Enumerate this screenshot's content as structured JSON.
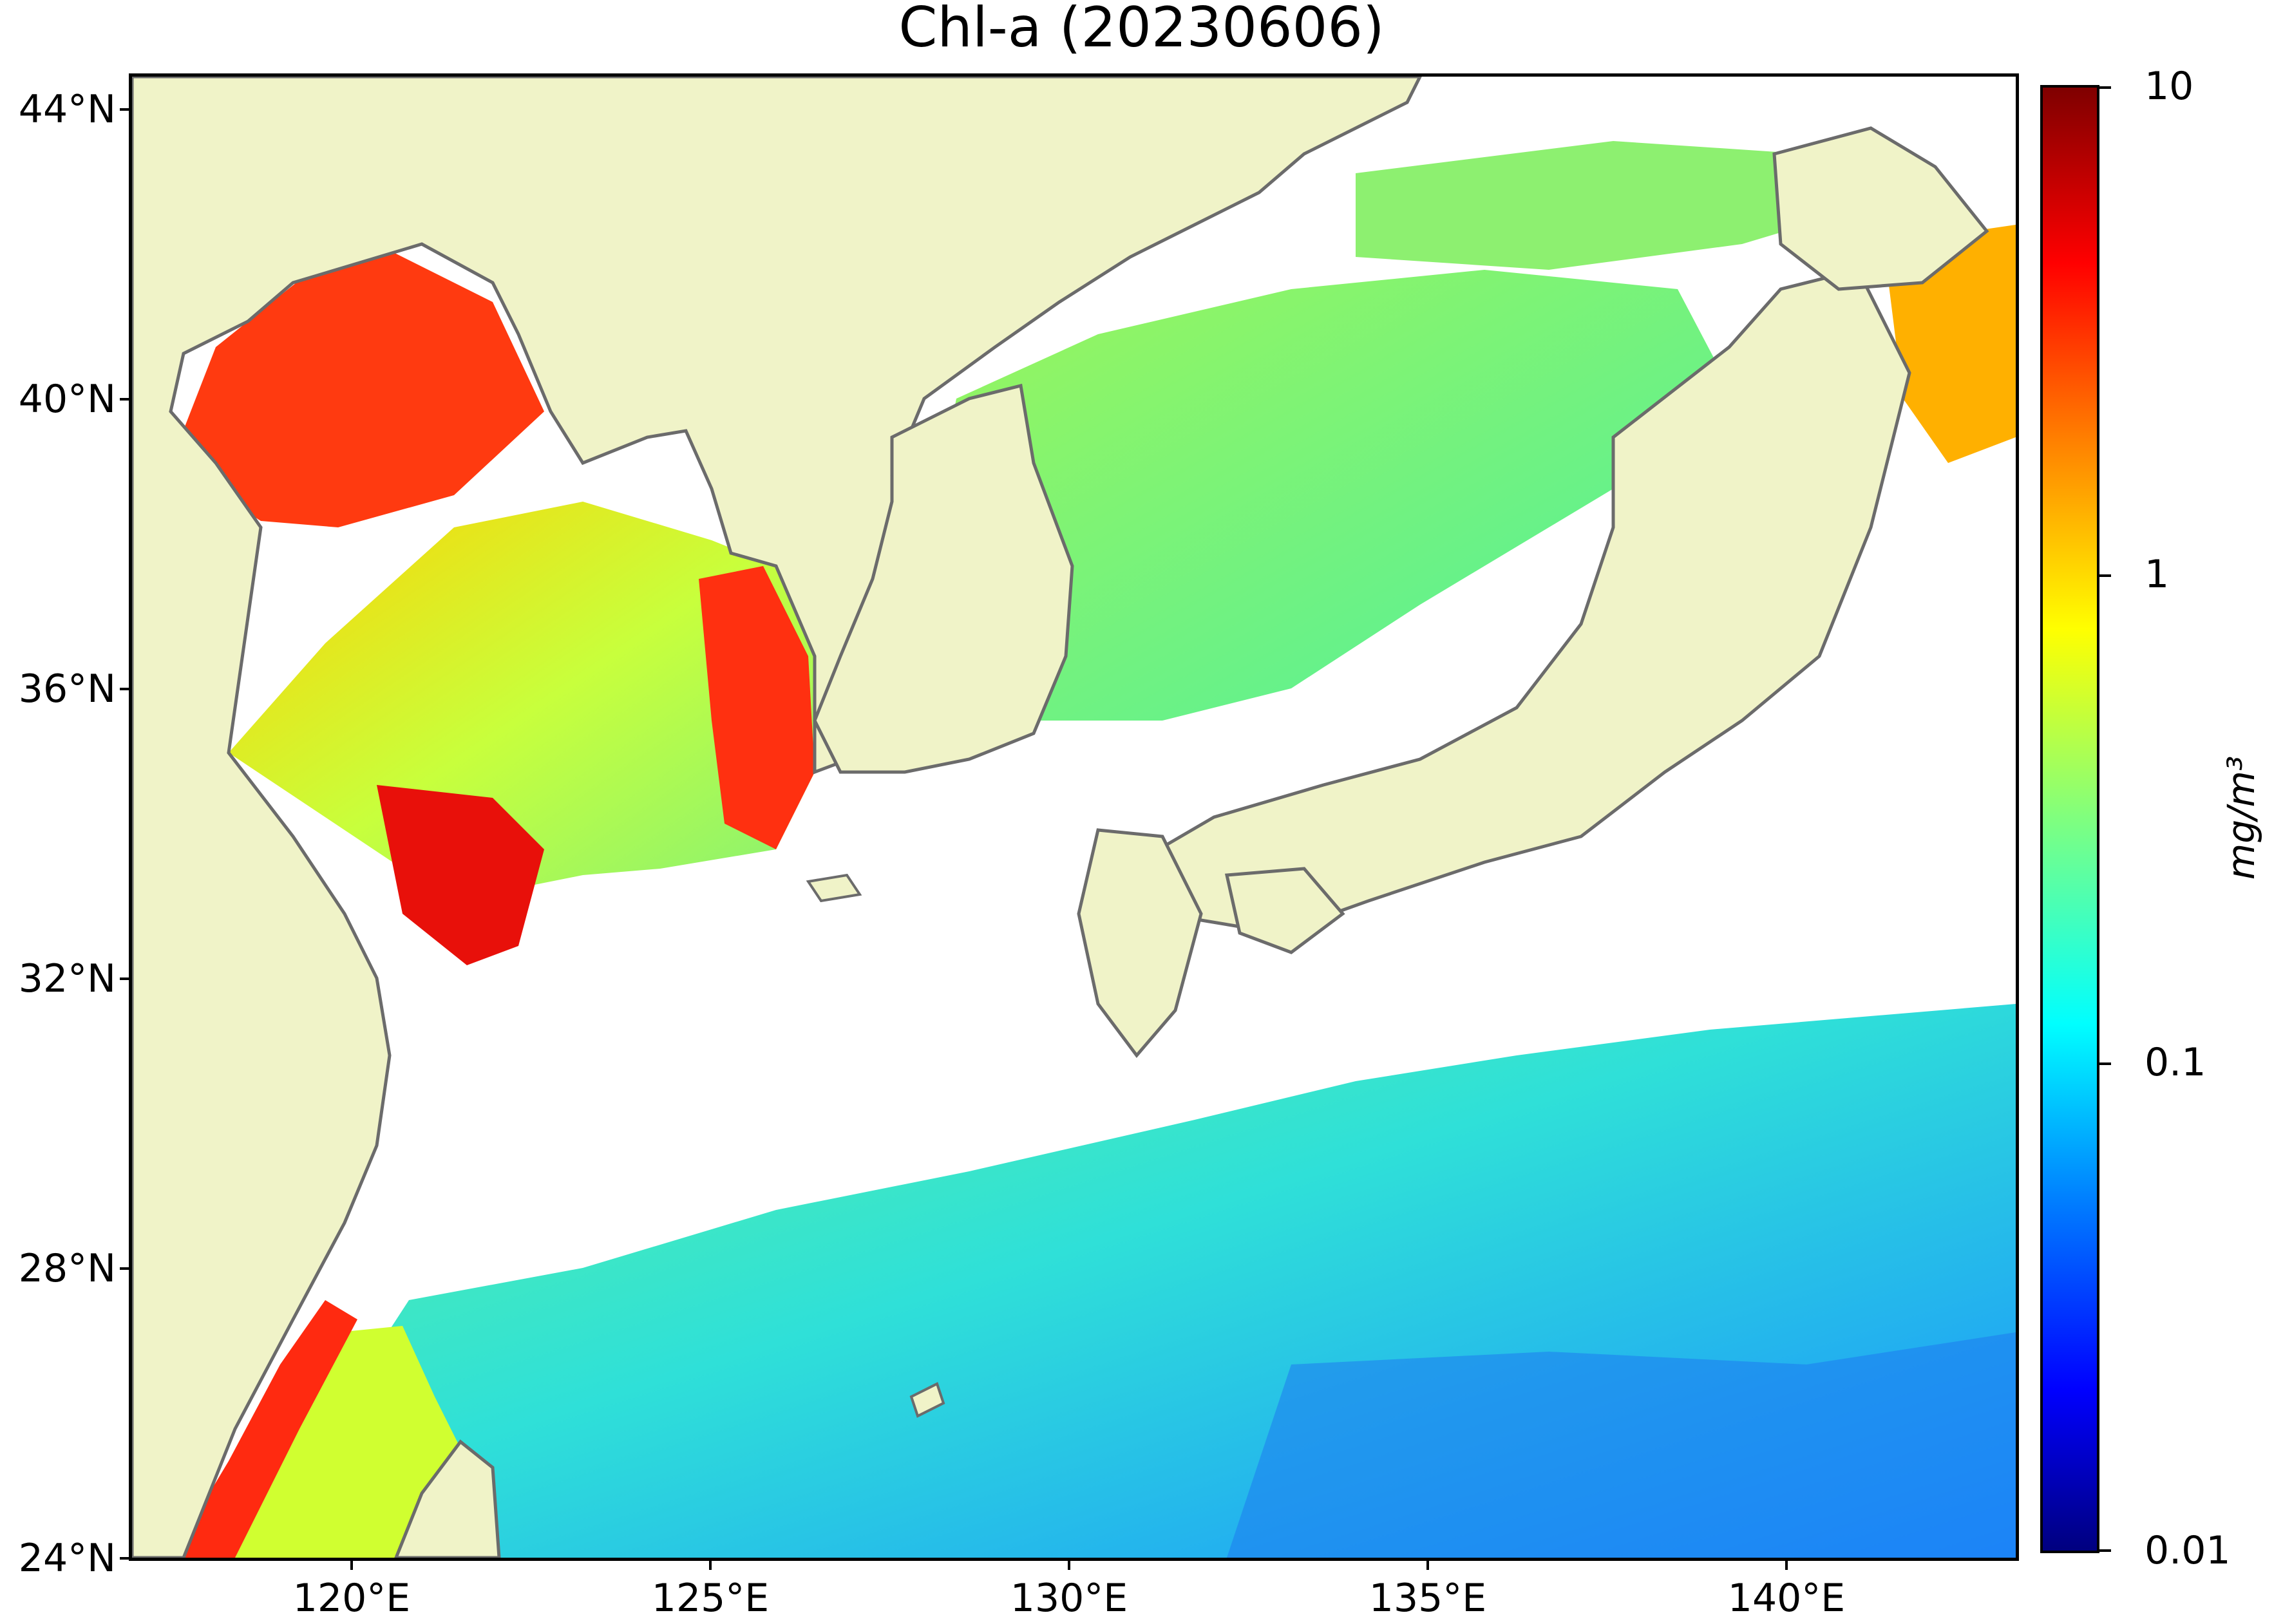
{
  "title": "Chl-a (20230606)",
  "colorbar": {
    "unit": "mg/m³",
    "tick_labels": [
      "10",
      "1",
      "0.1",
      "0.01"
    ],
    "scale": "log",
    "colormap": "jet"
  },
  "map": {
    "lat_labels": [
      "44°N",
      "40°N",
      "36°N",
      "32°N",
      "28°N",
      "24°N"
    ],
    "lon_labels": [
      "120°E",
      "125°E",
      "130°E",
      "135°E",
      "140°E"
    ],
    "lat_range": [
      24,
      44.5
    ],
    "lon_range": [
      117,
      143.3
    ],
    "colors": {
      "land": "#f0f3c8",
      "coast": "#6b6b6b",
      "no_data": "#ffffff"
    }
  }
}
